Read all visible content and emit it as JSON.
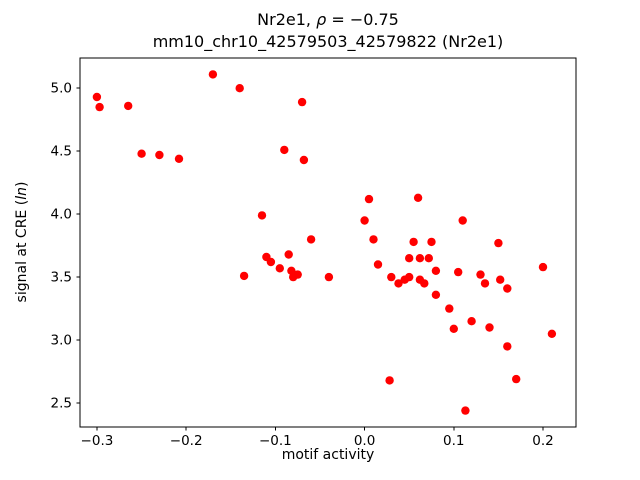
{
  "figure": {
    "title_line1": {
      "prefix": "Nr2e1, ",
      "rho": "ρ",
      "suffix": " = −0.75"
    },
    "title_line2": "mm10_chr10_42579503_42579822 (Nr2e1)",
    "xlabel": "motif activity",
    "ylabel": {
      "prefix": "signal at CRE (",
      "italic_part": "ln",
      "suffix": ")"
    }
  },
  "chart_data": {
    "type": "scatter",
    "title": "Nr2e1, ρ = −0.75",
    "subtitle": "mm10_chr10_42579503_42579822 (Nr2e1)",
    "xlabel": "motif activity",
    "ylabel": "signal at CRE (ln)",
    "marker_color": "#ff0000",
    "marker_radius": 4.2,
    "grid": false,
    "legend": null,
    "xlim": [
      -0.319,
      0.237
    ],
    "ylim": [
      2.31,
      5.24
    ],
    "xticks": [
      -0.3,
      -0.2,
      -0.1,
      0.0,
      0.1,
      0.2
    ],
    "xtick_labels": [
      "−0.3",
      "−0.2",
      "−0.1",
      "0.0",
      "0.1",
      "0.2"
    ],
    "yticks": [
      2.5,
      3.0,
      3.5,
      4.0,
      4.5,
      5.0
    ],
    "ytick_labels": [
      "2.5",
      "3.0",
      "3.5",
      "4.0",
      "4.5",
      "5.0"
    ],
    "points": [
      [
        -0.3,
        4.93
      ],
      [
        -0.297,
        4.85
      ],
      [
        -0.265,
        4.86
      ],
      [
        -0.25,
        4.48
      ],
      [
        -0.23,
        4.47
      ],
      [
        -0.208,
        4.44
      ],
      [
        -0.17,
        5.11
      ],
      [
        -0.14,
        5.0
      ],
      [
        -0.135,
        3.51
      ],
      [
        -0.115,
        3.99
      ],
      [
        -0.11,
        3.66
      ],
      [
        -0.105,
        3.62
      ],
      [
        -0.095,
        3.57
      ],
      [
        -0.09,
        4.51
      ],
      [
        -0.085,
        3.68
      ],
      [
        -0.082,
        3.55
      ],
      [
        -0.08,
        3.5
      ],
      [
        -0.075,
        3.52
      ],
      [
        -0.07,
        4.89
      ],
      [
        -0.068,
        4.43
      ],
      [
        -0.06,
        3.8
      ],
      [
        -0.04,
        3.5
      ],
      [
        0.0,
        3.95
      ],
      [
        0.005,
        4.12
      ],
      [
        0.01,
        3.8
      ],
      [
        0.015,
        3.6
      ],
      [
        0.028,
        2.68
      ],
      [
        0.03,
        3.5
      ],
      [
        0.038,
        3.45
      ],
      [
        0.045,
        3.48
      ],
      [
        0.05,
        3.5
      ],
      [
        0.05,
        3.65
      ],
      [
        0.055,
        3.78
      ],
      [
        0.06,
        4.13
      ],
      [
        0.062,
        3.65
      ],
      [
        0.062,
        3.48
      ],
      [
        0.067,
        3.45
      ],
      [
        0.072,
        3.65
      ],
      [
        0.075,
        3.78
      ],
      [
        0.08,
        3.55
      ],
      [
        0.08,
        3.36
      ],
      [
        0.095,
        3.25
      ],
      [
        0.1,
        3.09
      ],
      [
        0.105,
        3.54
      ],
      [
        0.11,
        3.95
      ],
      [
        0.113,
        2.44
      ],
      [
        0.12,
        3.15
      ],
      [
        0.13,
        3.52
      ],
      [
        0.135,
        3.45
      ],
      [
        0.14,
        3.1
      ],
      [
        0.15,
        3.77
      ],
      [
        0.152,
        3.48
      ],
      [
        0.16,
        3.41
      ],
      [
        0.16,
        2.95
      ],
      [
        0.17,
        2.69
      ],
      [
        0.2,
        3.58
      ],
      [
        0.21,
        3.05
      ]
    ]
  }
}
